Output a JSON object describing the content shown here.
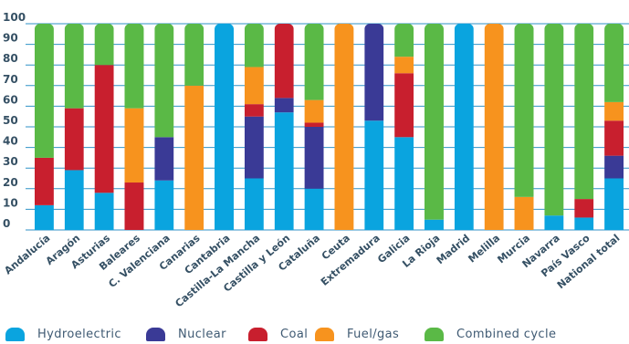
{
  "chart_data": {
    "type": "bar",
    "stacked": true,
    "title": "",
    "xlabel": "",
    "ylabel": "",
    "ylim": [
      0,
      100
    ],
    "y_ticks": [
      0,
      10,
      20,
      30,
      40,
      50,
      60,
      70,
      80,
      90,
      100
    ],
    "grid": true,
    "legend_position": "bottom",
    "categories": [
      "Andalucía",
      "Aragón",
      "Asturias",
      "Baleares",
      "C. Valenciana",
      "Canarias",
      "Cantabria",
      "Castilla-La Mancha",
      "Castilla y León",
      "Cataluña",
      "Ceuta",
      "Extremadura",
      "Galicia",
      "La Rioja",
      "Madrid",
      "Melilla",
      "Murcia",
      "Navarra",
      "País Vasco",
      "National total"
    ],
    "series": [
      {
        "name": "Hydroelectric",
        "color": "#0aa4df",
        "values": [
          12,
          29,
          18,
          0,
          24,
          0,
          100,
          25,
          57,
          20,
          0,
          53,
          45,
          5,
          100,
          0,
          0,
          7,
          6,
          25
        ]
      },
      {
        "name": "Nuclear",
        "color": "#3a3a96",
        "values": [
          0,
          0,
          0,
          0,
          21,
          0,
          0,
          30,
          7,
          30,
          0,
          47,
          0,
          0,
          0,
          0,
          0,
          0,
          0,
          11
        ]
      },
      {
        "name": "Coal",
        "color": "#c81f2e",
        "values": [
          23,
          30,
          62,
          23,
          0,
          0,
          0,
          6,
          36,
          2,
          0,
          0,
          31,
          0,
          0,
          0,
          0,
          0,
          9,
          17
        ]
      },
      {
        "name": "Fuel/gas",
        "color": "#f7931e",
        "values": [
          0,
          0,
          0,
          36,
          0,
          70,
          0,
          18,
          0,
          11,
          100,
          0,
          8,
          0,
          0,
          100,
          16,
          0,
          0,
          9
        ]
      },
      {
        "name": "Combined cycle",
        "color": "#5ab946",
        "values": [
          65,
          41,
          20,
          41,
          55,
          30,
          0,
          21,
          0,
          37,
          0,
          0,
          16,
          95,
          0,
          0,
          84,
          93,
          85,
          38
        ]
      }
    ]
  }
}
